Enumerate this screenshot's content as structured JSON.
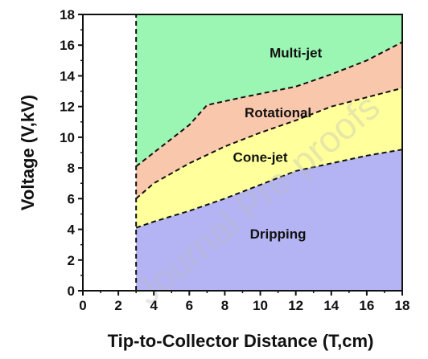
{
  "chart_data": {
    "type": "area",
    "xlabel": "Tip-to-Collector Distance (T,cm)",
    "ylabel": "Voltage (V,kV)",
    "xlim": [
      0,
      18
    ],
    "ylim": [
      0,
      18
    ],
    "x_ticks": [
      0,
      2,
      4,
      6,
      8,
      10,
      12,
      14,
      16,
      18
    ],
    "y_ticks": [
      0,
      2,
      4,
      6,
      8,
      10,
      12,
      14,
      16,
      18
    ],
    "grid": false,
    "boundary_x_start": 3,
    "boundaries": [
      {
        "points": [
          [
            3,
            4.1
          ],
          [
            4,
            4.5
          ],
          [
            6,
            5.2
          ],
          [
            8,
            6.0
          ],
          [
            10,
            6.9
          ],
          [
            12,
            7.8
          ],
          [
            14,
            8.3
          ],
          [
            16,
            8.8
          ],
          [
            18,
            9.2
          ]
        ]
      },
      {
        "points": [
          [
            3,
            6.0
          ],
          [
            4,
            7.0
          ],
          [
            6,
            8.3
          ],
          [
            8,
            9.4
          ],
          [
            10,
            10.3
          ],
          [
            12,
            11.1
          ],
          [
            14,
            12.0
          ],
          [
            16,
            12.6
          ],
          [
            18,
            13.2
          ]
        ]
      },
      {
        "points": [
          [
            3,
            8.1
          ],
          [
            4,
            9.0
          ],
          [
            6,
            10.8
          ],
          [
            7,
            12.1
          ],
          [
            9,
            12.6
          ],
          [
            12,
            13.3
          ],
          [
            14,
            14.1
          ],
          [
            16,
            15.0
          ],
          [
            18,
            16.2
          ]
        ]
      }
    ],
    "regions": [
      {
        "label": "Dripping",
        "color": "#b4b4f4",
        "label_at": [
          11,
          3.4
        ]
      },
      {
        "label": "Cone-jet",
        "color": "#ffff9c",
        "label_at": [
          10,
          8.4
        ]
      },
      {
        "label": "Rotational",
        "color": "#f9c7ab",
        "label_at": [
          11,
          11.3
        ]
      },
      {
        "label": "Multi-jet",
        "color": "#9bf5b3",
        "label_at": [
          12,
          15.2
        ]
      }
    ],
    "watermark": "Journal Pre-proofs"
  }
}
